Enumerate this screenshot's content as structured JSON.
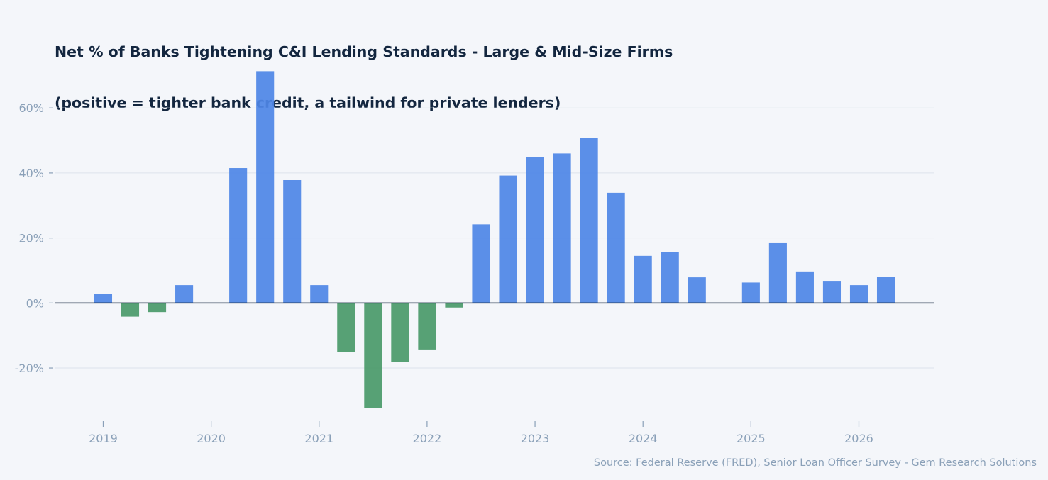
{
  "chart_data": {
    "type": "bar",
    "title": "Net % of Banks Tightening C&I Lending Standards - Large & Mid-Size Firms",
    "subtitle": "(positive = tighter bank credit, a tailwind for private lenders)",
    "source": "Source: Federal Reserve (FRED), Senior Loan Officer Survey - Gem Research Solutions",
    "xlabel": "",
    "ylabel": "",
    "x_ticks": [
      {
        "label": "2019",
        "x": 2019.0
      },
      {
        "label": "2020",
        "x": 2020.0
      },
      {
        "label": "2021",
        "x": 2021.0
      },
      {
        "label": "2022",
        "x": 2022.0
      },
      {
        "label": "2023",
        "x": 2023.0
      },
      {
        "label": "2024",
        "x": 2024.0
      },
      {
        "label": "2025",
        "x": 2025.0
      },
      {
        "label": "2026",
        "x": 2026.0
      }
    ],
    "y_ticks": [
      {
        "label": "-20%",
        "value": -20
      },
      {
        "label": "0%",
        "value": 0
      },
      {
        "label": "20%",
        "value": 20
      },
      {
        "label": "40%",
        "value": 40
      },
      {
        "label": "60%",
        "value": 60
      }
    ],
    "xlim": [
      2018.55,
      2026.7
    ],
    "ylim": [
      -37,
      74
    ],
    "grid": "horizontal",
    "colors": {
      "positive": "#4f86e6",
      "negative": "#4a9a6a",
      "zero_line": "#13263f",
      "grid": "#dde3ec"
    },
    "bar_width_years": 0.165,
    "points": [
      {
        "x": 2019.0,
        "value": 2.8
      },
      {
        "x": 2019.25,
        "value": -4.2
      },
      {
        "x": 2019.5,
        "value": -2.8
      },
      {
        "x": 2019.75,
        "value": 5.5
      },
      {
        "x": 2020.0,
        "value": 0
      },
      {
        "x": 2020.25,
        "value": 41.5
      },
      {
        "x": 2020.5,
        "value": 71.3
      },
      {
        "x": 2020.75,
        "value": 37.8
      },
      {
        "x": 2021.0,
        "value": 5.5
      },
      {
        "x": 2021.25,
        "value": -15.1
      },
      {
        "x": 2021.5,
        "value": -32.3
      },
      {
        "x": 2021.75,
        "value": -18.2
      },
      {
        "x": 2022.0,
        "value": -14.3
      },
      {
        "x": 2022.25,
        "value": -1.4
      },
      {
        "x": 2022.5,
        "value": 24.2
      },
      {
        "x": 2022.75,
        "value": 39.2
      },
      {
        "x": 2023.0,
        "value": 44.9
      },
      {
        "x": 2023.25,
        "value": 46.0
      },
      {
        "x": 2023.5,
        "value": 50.8
      },
      {
        "x": 2023.75,
        "value": 33.9
      },
      {
        "x": 2024.0,
        "value": 14.5
      },
      {
        "x": 2024.25,
        "value": 15.6
      },
      {
        "x": 2024.5,
        "value": 7.9
      },
      {
        "x": 2024.75,
        "value": 0
      },
      {
        "x": 2025.0,
        "value": 6.3
      },
      {
        "x": 2025.25,
        "value": 18.4
      },
      {
        "x": 2025.5,
        "value": 9.7
      },
      {
        "x": 2025.75,
        "value": 6.6
      },
      {
        "x": 2026.0,
        "value": 5.5
      },
      {
        "x": 2026.25,
        "value": 8.1
      }
    ]
  }
}
